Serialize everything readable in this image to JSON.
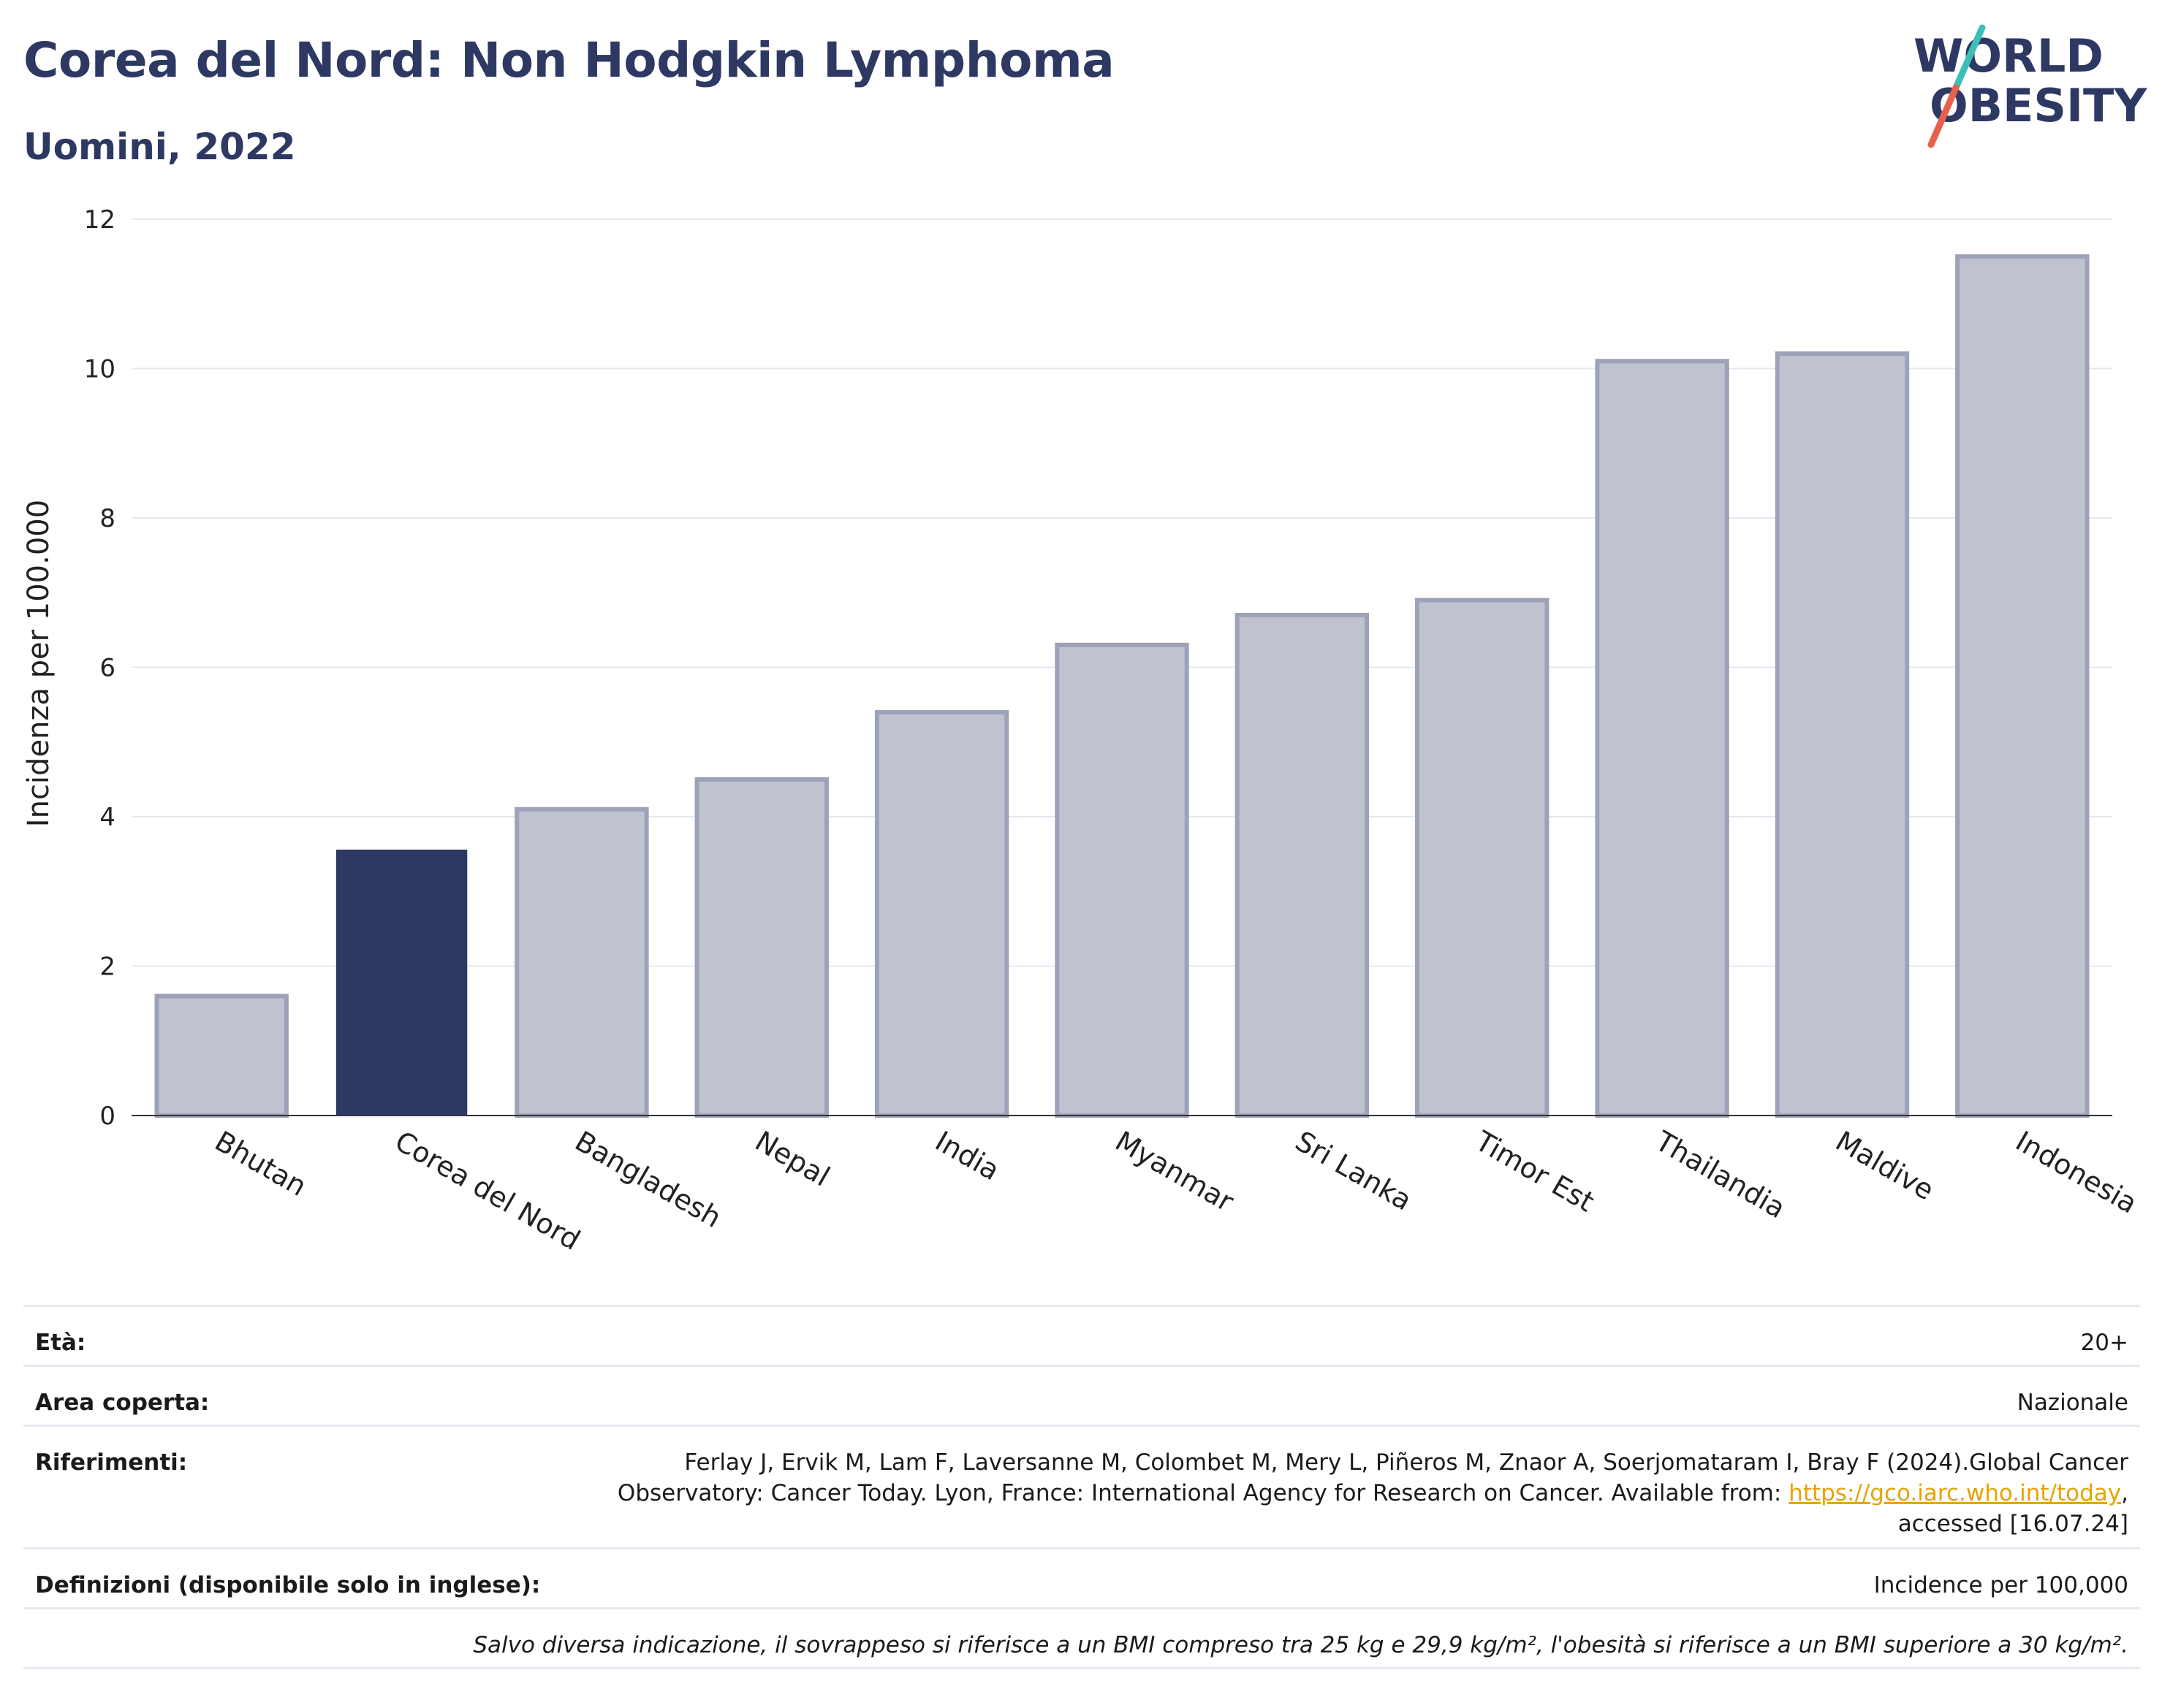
{
  "header": {
    "title": "Corea del Nord: Non Hodgkin Lymphoma",
    "subtitle": "Uomini, 2022"
  },
  "logo": {
    "line1": "WORLD",
    "line2": "OBESITY",
    "colors": {
      "text": "#2d3863",
      "slash_top": "#3dbfb8",
      "slash_bottom": "#e8604c"
    }
  },
  "chart_data": {
    "type": "bar",
    "categories": [
      "Bhutan",
      "Corea del Nord",
      "Bangladesh",
      "Nepal",
      "India",
      "Myanmar",
      "Sri Lanka",
      "Timor Est",
      "Thailandia",
      "Maldive",
      "Indonesia"
    ],
    "values": [
      1.6,
      3.55,
      4.1,
      4.5,
      5.4,
      6.3,
      6.7,
      6.9,
      10.1,
      10.2,
      11.5
    ],
    "highlight": "Corea del Nord",
    "ylabel": "Incidenza per 100.000",
    "ylim": [
      0,
      12
    ],
    "yticks": [
      0,
      2,
      4,
      6,
      8,
      10,
      12
    ],
    "grid": true,
    "colors": {
      "highlight": "#2d3863",
      "other_fill": "#bfc3d0",
      "other_stroke": "#9da2b8",
      "grid": "#e6e8ee"
    }
  },
  "info": {
    "age_label": "Età:",
    "age_value": "20+",
    "area_label": "Area coperta:",
    "area_value": "Nazionale",
    "refs_label": "Riferimenti:",
    "refs_text_1": "Ferlay J, Ervik M, Lam F, Laversanne M, Colombet M, Mery L, Piñeros M, Znaor A, Soerjomataram I, Bray F (2024).Global Cancer Observatory: Cancer Today. Lyon, France: International Agency for Research on Cancer. Available from: ",
    "refs_link": "https://gco.iarc.who.int/today",
    "refs_text_2": ", accessed [16.07.24]",
    "defs_label": "Definizioni (disponibile solo in inglese):",
    "defs_value": "Incidence per 100,000",
    "note": "Salvo diversa indicazione, il sovrappeso si riferisce a un BMI compreso tra 25 kg e 29,9 kg/m², l'obesità si riferisce a un BMI superiore a 30 kg/m²."
  }
}
